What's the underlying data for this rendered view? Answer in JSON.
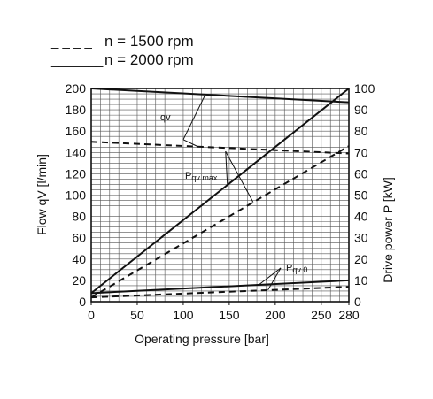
{
  "chart_data": {
    "type": "line",
    "legend": {
      "placement": "top-left",
      "entries": [
        {
          "prefix": "_ _ _ _",
          "label": "n = 1500 rpm",
          "style": "dashed"
        },
        {
          "prefix": "_______",
          "label": "n = 2000 rpm",
          "style": "solid"
        }
      ]
    },
    "xlabel": "Operating pressure  [bar]",
    "ylabel_left": "Flow qV [l/min]",
    "ylabel_right": "Drive power  P [kW]",
    "xlim": [
      0,
      280
    ],
    "ylim_left": [
      0,
      200
    ],
    "ylim_right": [
      0,
      100
    ],
    "x_ticks": [
      "0",
      "50",
      "100",
      "150",
      "200",
      "250",
      "280"
    ],
    "y_left_ticks": [
      "0",
      "20",
      "40",
      "60",
      "80",
      "100",
      "120",
      "140",
      "160",
      "180",
      "200"
    ],
    "y_right_ticks": [
      "0",
      "10",
      "20",
      "30",
      "40",
      "50",
      "60",
      "70",
      "80",
      "90",
      "100"
    ],
    "grid": true,
    "series": [
      {
        "group": "qv",
        "rpm": 2000,
        "style": "solid",
        "axis": "left",
        "x": [
          0,
          280
        ],
        "y": [
          200,
          187
        ]
      },
      {
        "group": "qv",
        "rpm": 1500,
        "style": "dashed",
        "axis": "left",
        "x": [
          0,
          280
        ],
        "y": [
          150,
          139
        ]
      },
      {
        "group": "Pqv max",
        "rpm": 2000,
        "style": "solid",
        "axis": "right",
        "x": [
          0,
          280
        ],
        "y": [
          4,
          100
        ]
      },
      {
        "group": "Pqv max",
        "rpm": 1500,
        "style": "dashed",
        "axis": "right",
        "x": [
          0,
          280
        ],
        "y": [
          2,
          73
        ]
      },
      {
        "group": "Pqv 0",
        "rpm": 2000,
        "style": "solid",
        "axis": "right",
        "x": [
          0,
          280
        ],
        "y": [
          4,
          10
        ]
      },
      {
        "group": "Pqv 0",
        "rpm": 1500,
        "style": "dashed",
        "axis": "right",
        "x": [
          0,
          280
        ],
        "y": [
          2,
          7
        ]
      }
    ],
    "annotations": [
      {
        "text": "qv",
        "sub": ""
      },
      {
        "text": "P",
        "sub": "qv max"
      },
      {
        "text": "P",
        "sub": "qv  0"
      }
    ]
  },
  "colors": {
    "line": "#111111",
    "grid": "#555555",
    "background": "#ffffff"
  }
}
